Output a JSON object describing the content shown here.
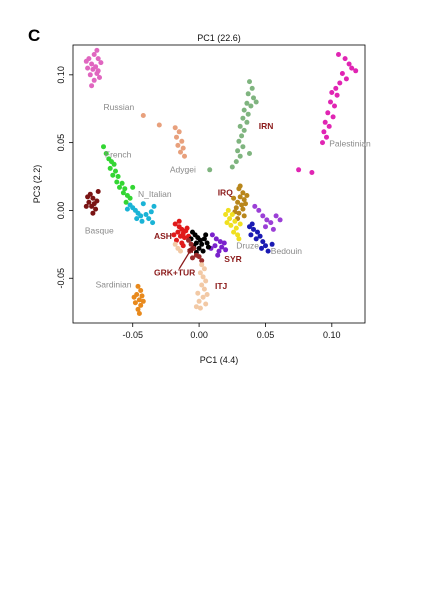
{
  "figure": {
    "panel_letter": "C"
  },
  "chart_data": {
    "type": "scatter",
    "title": "PC1 (22.6)",
    "xlabel": "PC1 (4.4)",
    "ylabel": "PC3 (2.2)",
    "xlim": [
      -0.095,
      0.125
    ],
    "ylim": [
      -0.083,
      0.122
    ],
    "x_ticks": [
      -0.05,
      0.0,
      0.05,
      0.1
    ],
    "x_tick_labels": [
      "-0.05",
      "0.00",
      "0.05",
      "0.10"
    ],
    "y_ticks": [
      -0.05,
      0.0,
      0.05,
      0.1
    ],
    "y_tick_labels": [
      "-0.05",
      "0.00",
      "0.05",
      "0.10"
    ],
    "grid": false,
    "series": [
      {
        "name": "Russian",
        "color": "#e066c0",
        "label_style": "plain",
        "label_pos": [
          -0.072,
          0.074
        ],
        "points": [
          [
            -0.085,
            0.11
          ],
          [
            -0.083,
            0.112
          ],
          [
            -0.081,
            0.108
          ],
          [
            -0.079,
            0.115
          ],
          [
            -0.08,
            0.104
          ],
          [
            -0.078,
            0.106
          ],
          [
            -0.076,
            0.112
          ],
          [
            -0.077,
            0.101
          ],
          [
            -0.075,
            0.098
          ],
          [
            -0.079,
            0.096
          ],
          [
            -0.082,
            0.1
          ],
          [
            -0.074,
            0.109
          ],
          [
            -0.081,
            0.092
          ],
          [
            -0.077,
            0.118
          ],
          [
            -0.084,
            0.105
          ],
          [
            -0.076,
            0.103
          ]
        ]
      },
      {
        "name": "Palestinian",
        "color": "#e025b3",
        "label_style": "plain",
        "label_pos": [
          0.098,
          0.047
        ],
        "points": [
          [
            0.105,
            0.115
          ],
          [
            0.11,
            0.112
          ],
          [
            0.113,
            0.108
          ],
          [
            0.115,
            0.105
          ],
          [
            0.108,
            0.101
          ],
          [
            0.111,
            0.097
          ],
          [
            0.106,
            0.094
          ],
          [
            0.103,
            0.09
          ],
          [
            0.1,
            0.087
          ],
          [
            0.104,
            0.085
          ],
          [
            0.099,
            0.08
          ],
          [
            0.102,
            0.077
          ],
          [
            0.097,
            0.072
          ],
          [
            0.101,
            0.069
          ],
          [
            0.095,
            0.065
          ],
          [
            0.098,
            0.062
          ],
          [
            0.094,
            0.058
          ],
          [
            0.096,
            0.054
          ],
          [
            0.093,
            0.05
          ],
          [
            0.075,
            0.03
          ],
          [
            0.085,
            0.028
          ],
          [
            0.118,
            0.103
          ]
        ]
      },
      {
        "name": "IRN",
        "color": "#7fb47f",
        "label_style": "bold",
        "label_pos": [
          0.045,
          0.06
        ],
        "points": [
          [
            0.038,
            0.095
          ],
          [
            0.04,
            0.09
          ],
          [
            0.037,
            0.086
          ],
          [
            0.041,
            0.083
          ],
          [
            0.036,
            0.079
          ],
          [
            0.039,
            0.077
          ],
          [
            0.034,
            0.074
          ],
          [
            0.037,
            0.071
          ],
          [
            0.033,
            0.068
          ],
          [
            0.036,
            0.065
          ],
          [
            0.031,
            0.062
          ],
          [
            0.034,
            0.059
          ],
          [
            0.032,
            0.055
          ],
          [
            0.03,
            0.051
          ],
          [
            0.033,
            0.047
          ],
          [
            0.029,
            0.044
          ],
          [
            0.031,
            0.04
          ],
          [
            0.028,
            0.036
          ],
          [
            0.025,
            0.032
          ],
          [
            0.038,
            0.042
          ],
          [
            0.008,
            0.03
          ],
          [
            0.043,
            0.08
          ]
        ]
      },
      {
        "name": "Adygei",
        "color": "#e8a07c",
        "label_style": "plain",
        "label_pos": [
          -0.022,
          0.028
        ],
        "points": [
          [
            -0.042,
            0.07
          ],
          [
            -0.03,
            0.063
          ],
          [
            -0.015,
            0.058
          ],
          [
            -0.017,
            0.054
          ],
          [
            -0.013,
            0.051
          ],
          [
            -0.016,
            0.048
          ],
          [
            -0.012,
            0.046
          ],
          [
            -0.014,
            0.043
          ],
          [
            -0.011,
            0.04
          ],
          [
            -0.018,
            0.061
          ]
        ]
      },
      {
        "name": "French",
        "color": "#33d633",
        "label_style": "plain",
        "label_pos": [
          -0.071,
          0.039
        ],
        "points": [
          [
            -0.072,
            0.047
          ],
          [
            -0.07,
            0.042
          ],
          [
            -0.068,
            0.038
          ],
          [
            -0.066,
            0.036
          ],
          [
            -0.064,
            0.034
          ],
          [
            -0.067,
            0.031
          ],
          [
            -0.063,
            0.029
          ],
          [
            -0.065,
            0.026
          ],
          [
            -0.061,
            0.025
          ],
          [
            -0.062,
            0.021
          ],
          [
            -0.058,
            0.02
          ],
          [
            -0.06,
            0.017
          ],
          [
            -0.056,
            0.016
          ],
          [
            -0.057,
            0.013
          ],
          [
            -0.054,
            0.011
          ],
          [
            -0.052,
            0.009
          ],
          [
            -0.055,
            0.006
          ],
          [
            -0.05,
            0.017
          ]
        ]
      },
      {
        "name": "N_Italian",
        "color": "#1ab3d6",
        "label_style": "plain",
        "label_pos": [
          -0.046,
          0.01
        ],
        "points": [
          [
            -0.052,
            0.004
          ],
          [
            -0.05,
            0.002
          ],
          [
            -0.048,
            0.0
          ],
          [
            -0.046,
            -0.002
          ],
          [
            -0.044,
            -0.004
          ],
          [
            -0.047,
            -0.006
          ],
          [
            -0.043,
            -0.008
          ],
          [
            -0.04,
            -0.003
          ],
          [
            -0.038,
            -0.006
          ],
          [
            -0.042,
            0.005
          ],
          [
            -0.036,
            -0.001
          ],
          [
            -0.034,
            0.003
          ],
          [
            -0.035,
            -0.009
          ],
          [
            -0.054,
            0.001
          ]
        ]
      },
      {
        "name": "Basque",
        "color": "#7a1414",
        "label_style": "plain",
        "label_pos": [
          -0.086,
          -0.017
        ],
        "points": [
          [
            -0.084,
            0.01
          ],
          [
            -0.082,
            0.012
          ],
          [
            -0.08,
            0.009
          ],
          [
            -0.083,
            0.006
          ],
          [
            -0.079,
            0.005
          ],
          [
            -0.081,
            0.003
          ],
          [
            -0.077,
            0.007
          ],
          [
            -0.078,
            0.001
          ],
          [
            -0.08,
            -0.002
          ],
          [
            -0.076,
            0.014
          ],
          [
            -0.085,
            0.003
          ]
        ]
      },
      {
        "name": "IRQ",
        "color": "#b8861b",
        "label_style": "bold",
        "label_pos": [
          0.014,
          0.011
        ],
        "points": [
          [
            0.03,
            0.016
          ],
          [
            0.033,
            0.013
          ],
          [
            0.031,
            0.01
          ],
          [
            0.034,
            0.008
          ],
          [
            0.029,
            0.006
          ],
          [
            0.032,
            0.004
          ],
          [
            0.028,
            0.002
          ],
          [
            0.033,
            0.001
          ],
          [
            0.03,
            -0.002
          ],
          [
            0.027,
            -0.001
          ],
          [
            0.035,
            0.005
          ],
          [
            0.031,
            0.018
          ],
          [
            0.026,
            0.009
          ],
          [
            0.034,
            -0.004
          ],
          [
            0.029,
            -0.006
          ],
          [
            0.036,
            0.011
          ]
        ]
      },
      {
        "name": "Druze",
        "color": "#f0e020",
        "label_style": "plain",
        "label_pos": [
          0.028,
          -0.028
        ],
        "points": [
          [
            0.022,
            0.0
          ],
          [
            0.025,
            -0.003
          ],
          [
            0.023,
            -0.006
          ],
          [
            0.027,
            -0.008
          ],
          [
            0.024,
            -0.011
          ],
          [
            0.028,
            -0.013
          ],
          [
            0.026,
            -0.016
          ],
          [
            0.029,
            -0.018
          ],
          [
            0.021,
            -0.009
          ],
          [
            0.031,
            -0.01
          ],
          [
            0.02,
            -0.003
          ],
          [
            0.03,
            -0.021
          ]
        ]
      },
      {
        "name": "Bedouin",
        "color": "#1a1ab3",
        "label_style": "plain",
        "label_pos": [
          0.054,
          -0.032
        ],
        "points": [
          [
            0.038,
            -0.012
          ],
          [
            0.041,
            -0.014
          ],
          [
            0.044,
            -0.016
          ],
          [
            0.046,
            -0.019
          ],
          [
            0.043,
            -0.021
          ],
          [
            0.048,
            -0.023
          ],
          [
            0.05,
            -0.026
          ],
          [
            0.047,
            -0.028
          ],
          [
            0.052,
            -0.03
          ],
          [
            0.039,
            -0.018
          ],
          [
            0.055,
            -0.025
          ],
          [
            0.04,
            -0.01
          ]
        ]
      },
      {
        "name": "",
        "color": "#9b3fd6",
        "label_style": "plain",
        "label_pos": null,
        "points": [
          [
            0.045,
            0.0
          ],
          [
            0.048,
            -0.004
          ],
          [
            0.051,
            -0.007
          ],
          [
            0.054,
            -0.009
          ],
          [
            0.05,
            -0.012
          ],
          [
            0.056,
            -0.014
          ],
          [
            0.042,
            0.003
          ],
          [
            0.058,
            -0.004
          ],
          [
            0.061,
            -0.007
          ]
        ]
      },
      {
        "name": "SYR",
        "color": "#7a22cc",
        "label_style": "bold",
        "label_pos": [
          0.019,
          -0.038
        ],
        "points": [
          [
            0.01,
            -0.018
          ],
          [
            0.013,
            -0.021
          ],
          [
            0.016,
            -0.023
          ],
          [
            0.012,
            -0.026
          ],
          [
            0.017,
            -0.027
          ],
          [
            0.015,
            -0.03
          ],
          [
            0.019,
            -0.024
          ],
          [
            0.009,
            -0.028
          ],
          [
            0.014,
            -0.033
          ],
          [
            0.02,
            -0.029
          ]
        ]
      },
      {
        "name": "ASH",
        "color": "#e01a1a",
        "label_style": "bold",
        "label_pos": [
          -0.034,
          -0.021
        ],
        "points": [
          [
            -0.018,
            -0.01
          ],
          [
            -0.015,
            -0.012
          ],
          [
            -0.013,
            -0.014
          ],
          [
            -0.016,
            -0.016
          ],
          [
            -0.012,
            -0.017
          ],
          [
            -0.014,
            -0.019
          ],
          [
            -0.01,
            -0.015
          ],
          [
            -0.011,
            -0.02
          ],
          [
            -0.017,
            -0.022
          ],
          [
            -0.013,
            -0.024
          ],
          [
            -0.019,
            -0.018
          ],
          [
            -0.009,
            -0.013
          ],
          [
            -0.008,
            -0.019
          ],
          [
            -0.015,
            -0.008
          ],
          [
            -0.012,
            -0.026
          ]
        ]
      },
      {
        "name": "GRK+TUR",
        "color": "#000000",
        "label_style": "bold",
        "label_pos": [
          -0.034,
          -0.048
        ],
        "points": [
          [
            -0.005,
            -0.016
          ],
          [
            -0.003,
            -0.018
          ],
          [
            -0.001,
            -0.02
          ],
          [
            0.001,
            -0.022
          ],
          [
            -0.002,
            -0.024
          ],
          [
            0.002,
            -0.025
          ],
          [
            0.004,
            -0.021
          ],
          [
            -0.004,
            -0.026
          ],
          [
            0.0,
            -0.028
          ],
          [
            0.003,
            -0.03
          ],
          [
            0.006,
            -0.024
          ],
          [
            -0.006,
            -0.021
          ],
          [
            0.005,
            -0.018
          ],
          [
            0.007,
            -0.027
          ],
          [
            -0.002,
            -0.031
          ]
        ]
      },
      {
        "name": "",
        "color": "#9b2a2a",
        "label_style": "plain",
        "label_pos": null,
        "points": [
          [
            -0.008,
            -0.022
          ],
          [
            -0.006,
            -0.025
          ],
          [
            -0.004,
            -0.028
          ],
          [
            -0.007,
            -0.03
          ],
          [
            -0.002,
            -0.033
          ],
          [
            0.0,
            -0.034
          ],
          [
            -0.005,
            -0.035
          ],
          [
            0.002,
            -0.037
          ]
        ]
      },
      {
        "name": "ITJ",
        "color": "#f2c9a5",
        "label_style": "bold",
        "label_pos": [
          0.012,
          -0.058
        ],
        "points": [
          [
            -0.018,
            -0.025
          ],
          [
            -0.016,
            -0.028
          ],
          [
            -0.014,
            -0.03
          ],
          [
            0.002,
            -0.04
          ],
          [
            0.004,
            -0.043
          ],
          [
            0.001,
            -0.046
          ],
          [
            0.003,
            -0.049
          ],
          [
            0.005,
            -0.052
          ],
          [
            0.002,
            -0.055
          ],
          [
            0.004,
            -0.058
          ],
          [
            -0.001,
            -0.061
          ],
          [
            0.003,
            -0.064
          ],
          [
            0.0,
            -0.067
          ],
          [
            0.005,
            -0.069
          ],
          [
            -0.002,
            -0.071
          ],
          [
            0.006,
            -0.062
          ],
          [
            0.001,
            -0.072
          ]
        ]
      },
      {
        "name": "Sardinian",
        "color": "#e8891c",
        "label_style": "plain",
        "label_pos": [
          -0.078,
          -0.057
        ],
        "points": [
          [
            -0.046,
            -0.056
          ],
          [
            -0.044,
            -0.059
          ],
          [
            -0.047,
            -0.062
          ],
          [
            -0.043,
            -0.063
          ],
          [
            -0.045,
            -0.066
          ],
          [
            -0.048,
            -0.068
          ],
          [
            -0.044,
            -0.07
          ],
          [
            -0.046,
            -0.073
          ],
          [
            -0.042,
            -0.067
          ],
          [
            -0.049,
            -0.064
          ],
          [
            -0.045,
            -0.076
          ]
        ]
      }
    ],
    "annotations": [
      {
        "type": "arrow",
        "color": "#8b1a1a",
        "from": [
          -0.015,
          -0.043
        ],
        "to": [
          -0.005,
          -0.027
        ]
      }
    ]
  }
}
